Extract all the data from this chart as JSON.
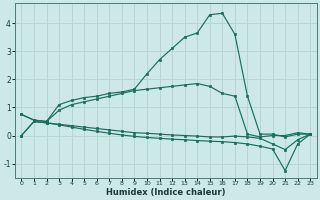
{
  "xlabel": "Humidex (Indice chaleur)",
  "bg_color": "#cce8e8",
  "grid_color": "#b8d4d4",
  "line_color": "#1a6e60",
  "xlim": [
    -0.5,
    23.5
  ],
  "ylim": [
    -1.5,
    4.7
  ],
  "yticks": [
    -1,
    0,
    1,
    2,
    3,
    4
  ],
  "xticks": [
    0,
    1,
    2,
    3,
    4,
    5,
    6,
    7,
    8,
    9,
    10,
    11,
    12,
    13,
    14,
    15,
    16,
    17,
    18,
    19,
    20,
    21,
    22,
    23
  ],
  "line1_x": [
    0,
    1,
    2,
    3,
    4,
    5,
    6,
    7,
    8,
    9,
    10,
    11,
    12,
    13,
    14,
    15,
    16,
    17,
    18,
    19,
    20,
    21,
    22,
    23
  ],
  "line1_y": [
    0.75,
    0.55,
    0.5,
    1.1,
    1.25,
    1.35,
    1.4,
    1.5,
    1.55,
    1.65,
    2.2,
    2.7,
    3.1,
    3.5,
    3.65,
    4.3,
    4.35,
    3.6,
    1.4,
    0.05,
    0.05,
    -0.05,
    0.05,
    0.05
  ],
  "line2_x": [
    0,
    1,
    2,
    3,
    4,
    5,
    6,
    7,
    8,
    9,
    10,
    11,
    12,
    13,
    14,
    15,
    16,
    17,
    18,
    19,
    20,
    21,
    22,
    23
  ],
  "line2_y": [
    0.75,
    0.55,
    0.5,
    0.9,
    1.1,
    1.2,
    1.3,
    1.4,
    1.5,
    1.6,
    1.65,
    1.7,
    1.75,
    1.8,
    1.85,
    1.75,
    1.5,
    1.4,
    0.05,
    -0.05,
    0.0,
    0.0,
    0.1,
    0.05
  ],
  "line3_x": [
    0,
    1,
    2,
    3,
    4,
    5,
    6,
    7,
    8,
    9,
    10,
    11,
    12,
    13,
    14,
    15,
    16,
    17,
    18,
    19,
    20,
    21,
    22,
    23
  ],
  "line3_y": [
    0.0,
    0.5,
    0.45,
    0.4,
    0.35,
    0.3,
    0.25,
    0.2,
    0.15,
    0.1,
    0.08,
    0.05,
    0.02,
    0.0,
    -0.02,
    -0.05,
    -0.05,
    -0.02,
    -0.05,
    -0.1,
    -0.3,
    -0.5,
    -0.15,
    0.05
  ],
  "line4_x": [
    0,
    1,
    2,
    3,
    4,
    5,
    6,
    7,
    8,
    9,
    10,
    11,
    12,
    13,
    14,
    15,
    16,
    17,
    18,
    19,
    20,
    21,
    22,
    23
  ],
  "line4_y": [
    0.0,
    0.5,
    0.45,
    0.38,
    0.3,
    0.22,
    0.15,
    0.08,
    0.02,
    -0.03,
    -0.07,
    -0.1,
    -0.13,
    -0.15,
    -0.18,
    -0.2,
    -0.22,
    -0.25,
    -0.3,
    -0.38,
    -0.48,
    -1.25,
    -0.3,
    0.05
  ]
}
